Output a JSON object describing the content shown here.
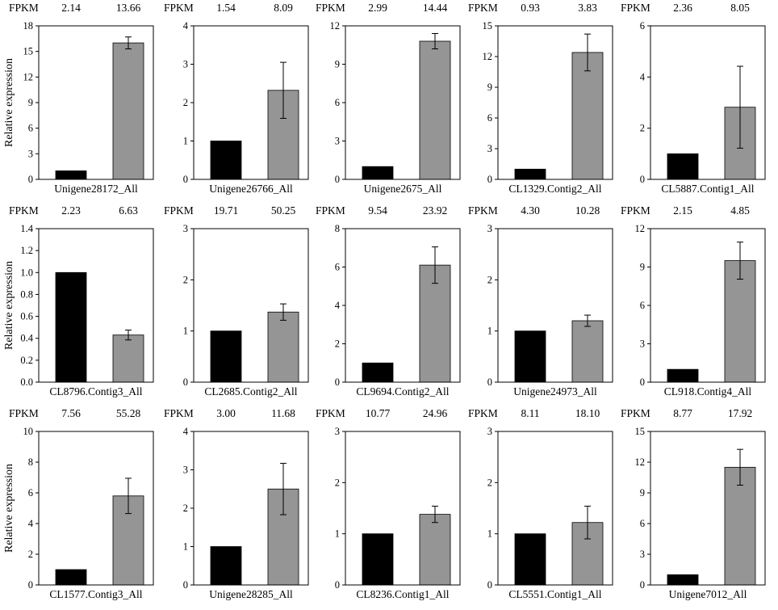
{
  "figure": {
    "fpkm_label": "FPKM",
    "ylabel": "Relative expression",
    "colors": {
      "control": "#000000",
      "treatment": "#959595",
      "axis": "#000000",
      "error": "#000000"
    }
  },
  "chart_data": [
    {
      "type": "bar",
      "title": "Unigene28172_All",
      "ylabel": "Relative expression",
      "fpkm": [
        "2.14",
        "13.66"
      ],
      "values": [
        1.0,
        16.0
      ],
      "errors": [
        0,
        0.7
      ],
      "ylim": [
        0,
        18
      ],
      "yticks": [
        0,
        3,
        6,
        9,
        12,
        15,
        18
      ],
      "ytick_labels": [
        "0",
        "3",
        "6",
        "9",
        "12",
        "15",
        "18"
      ]
    },
    {
      "type": "bar",
      "title": "Unigene26766_All",
      "ylabel": "",
      "fpkm": [
        "1.54",
        "8.09"
      ],
      "values": [
        1.0,
        2.32
      ],
      "errors": [
        0,
        0.73
      ],
      "ylim": [
        0,
        4
      ],
      "yticks": [
        0,
        1,
        2,
        3,
        4
      ],
      "ytick_labels": [
        "0",
        "1",
        "2",
        "3",
        "4"
      ]
    },
    {
      "type": "bar",
      "title": "Unigene2675_All",
      "ylabel": "",
      "fpkm": [
        "2.99",
        "14.44"
      ],
      "values": [
        1.0,
        10.8
      ],
      "errors": [
        0,
        0.6
      ],
      "ylim": [
        0,
        12
      ],
      "yticks": [
        0,
        3,
        6,
        9,
        12
      ],
      "ytick_labels": [
        "0",
        "3",
        "6",
        "9",
        "12"
      ]
    },
    {
      "type": "bar",
      "title": "CL1329.Contig2_All",
      "ylabel": "",
      "fpkm": [
        "0.93",
        "3.83"
      ],
      "values": [
        1.0,
        12.4
      ],
      "errors": [
        0,
        1.8
      ],
      "ylim": [
        0,
        15
      ],
      "yticks": [
        0,
        3,
        6,
        9,
        12,
        15
      ],
      "ytick_labels": [
        "0",
        "3",
        "6",
        "9",
        "12",
        "15"
      ]
    },
    {
      "type": "bar",
      "title": "CL5887.Contig1_All",
      "ylabel": "",
      "fpkm": [
        "2.36",
        "8.05"
      ],
      "values": [
        1.0,
        2.82
      ],
      "errors": [
        0,
        1.6
      ],
      "ylim": [
        0,
        6
      ],
      "yticks": [
        0,
        2,
        4,
        6
      ],
      "ytick_labels": [
        "0",
        "2",
        "4",
        "6"
      ]
    },
    {
      "type": "bar",
      "title": "CL8796.Contig3_All",
      "ylabel": "Relative expression",
      "fpkm": [
        "2.23",
        "6.63"
      ],
      "values": [
        1.0,
        0.43
      ],
      "errors": [
        0,
        0.045
      ],
      "ylim": [
        0,
        1.4
      ],
      "yticks": [
        0,
        0.2,
        0.4,
        0.6,
        0.8,
        1.0,
        1.2,
        1.4
      ],
      "ytick_labels": [
        "0.0",
        "0.2",
        "0.4",
        "0.6",
        "0.8",
        "1.0",
        "1.2",
        "1.4"
      ]
    },
    {
      "type": "bar",
      "title": "CL2685.Contig2_All",
      "ylabel": "",
      "fpkm": [
        "19.71",
        "50.25"
      ],
      "values": [
        1.0,
        1.37
      ],
      "errors": [
        0,
        0.16
      ],
      "ylim": [
        0,
        3
      ],
      "yticks": [
        0,
        1,
        2,
        3
      ],
      "ytick_labels": [
        "0",
        "1",
        "2",
        "3"
      ]
    },
    {
      "type": "bar",
      "title": "CL9694.Contig2_All",
      "ylabel": "",
      "fpkm": [
        "9.54",
        "23.92"
      ],
      "values": [
        1.0,
        6.1
      ],
      "errors": [
        0,
        0.95
      ],
      "ylim": [
        0,
        8
      ],
      "yticks": [
        0,
        2,
        4,
        6,
        8
      ],
      "ytick_labels": [
        "0",
        "2",
        "4",
        "6",
        "8"
      ]
    },
    {
      "type": "bar",
      "title": "Unigene24973_All",
      "ylabel": "",
      "fpkm": [
        "4.30",
        "10.28"
      ],
      "values": [
        1.0,
        1.2
      ],
      "errors": [
        0,
        0.11
      ],
      "ylim": [
        0,
        3
      ],
      "yticks": [
        0,
        1,
        2,
        3
      ],
      "ytick_labels": [
        "0",
        "1",
        "2",
        "3"
      ]
    },
    {
      "type": "bar",
      "title": "CL918.Contig4_All",
      "ylabel": "",
      "fpkm": [
        "2.15",
        "4.85"
      ],
      "values": [
        1.0,
        9.5
      ],
      "errors": [
        0,
        1.45
      ],
      "ylim": [
        0,
        12
      ],
      "yticks": [
        0,
        3,
        6,
        9,
        12
      ],
      "ytick_labels": [
        "0",
        "3",
        "6",
        "9",
        "12"
      ]
    },
    {
      "type": "bar",
      "title": "CL1577.Contig3_All",
      "ylabel": "Relative expression",
      "fpkm": [
        "7.56",
        "55.28"
      ],
      "values": [
        1.0,
        5.8
      ],
      "errors": [
        0,
        1.15
      ],
      "ylim": [
        0,
        10
      ],
      "yticks": [
        0,
        2,
        4,
        6,
        8,
        10
      ],
      "ytick_labels": [
        "0",
        "2",
        "4",
        "6",
        "8",
        "10"
      ]
    },
    {
      "type": "bar",
      "title": "Unigene28285_All",
      "ylabel": "",
      "fpkm": [
        "3.00",
        "11.68"
      ],
      "values": [
        1.0,
        2.5
      ],
      "errors": [
        0,
        0.67
      ],
      "ylim": [
        0,
        4
      ],
      "yticks": [
        0,
        1,
        2,
        3,
        4
      ],
      "ytick_labels": [
        "0",
        "1",
        "2",
        "3",
        "4"
      ]
    },
    {
      "type": "bar",
      "title": "CL8236.Contig1_All",
      "ylabel": "",
      "fpkm": [
        "10.77",
        "24.96"
      ],
      "values": [
        1.0,
        1.38
      ],
      "errors": [
        0,
        0.16
      ],
      "ylim": [
        0,
        3
      ],
      "yticks": [
        0,
        1,
        2,
        3
      ],
      "ytick_labels": [
        "0",
        "1",
        "2",
        "3"
      ]
    },
    {
      "type": "bar",
      "title": "CL5551.Contig1_All",
      "ylabel": "",
      "fpkm": [
        "8.11",
        "18.10"
      ],
      "values": [
        1.0,
        1.22
      ],
      "errors": [
        0,
        0.32
      ],
      "ylim": [
        0,
        3
      ],
      "yticks": [
        0,
        1,
        2,
        3
      ],
      "ytick_labels": [
        "0",
        "1",
        "2",
        "3"
      ]
    },
    {
      "type": "bar",
      "title": "Unigene7012_All",
      "ylabel": "",
      "fpkm": [
        "8.77",
        "17.92"
      ],
      "values": [
        1.0,
        11.5
      ],
      "errors": [
        0,
        1.75
      ],
      "ylim": [
        0,
        15
      ],
      "yticks": [
        0,
        3,
        6,
        9,
        12,
        15
      ],
      "ytick_labels": [
        "0",
        "3",
        "6",
        "9",
        "12",
        "15"
      ]
    }
  ]
}
